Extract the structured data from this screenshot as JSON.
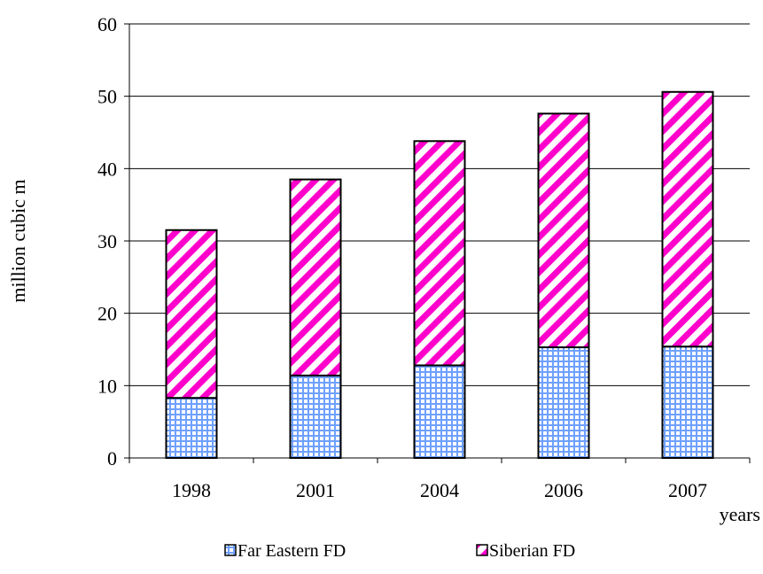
{
  "chart_data": {
    "type": "bar",
    "stacked": true,
    "categories": [
      "1998",
      "2001",
      "2004",
      "2006",
      "2007"
    ],
    "series": [
      {
        "name": "Far Eastern FD",
        "values": [
          8.3,
          11.4,
          12.8,
          15.3,
          15.4
        ],
        "color": "#6fa0ff",
        "pattern": "grid"
      },
      {
        "name": "Siberian FD",
        "values": [
          23.2,
          27.1,
          31.0,
          32.3,
          35.2
        ],
        "color": "#ff00cc",
        "pattern": "diagonal-stripes"
      }
    ],
    "title": "",
    "xlabel": "years",
    "ylabel": "million cubic m",
    "ylim": [
      0,
      60
    ],
    "yticks": [
      0,
      10,
      20,
      30,
      40,
      50,
      60
    ],
    "grid": true,
    "legend": "bottom"
  }
}
